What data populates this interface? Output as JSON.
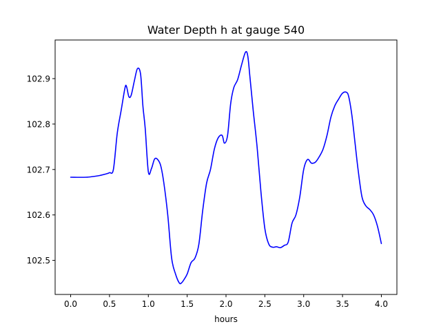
{
  "chart_data": {
    "type": "line",
    "title": "Water Depth h at gauge 540",
    "xlabel": "hours",
    "ylabel": "",
    "xlim": [
      -0.2,
      4.2
    ],
    "ylim": [
      102.425,
      102.985
    ],
    "xticks": [
      0.0,
      0.5,
      1.0,
      1.5,
      2.0,
      2.5,
      3.0,
      3.5,
      4.0
    ],
    "xtick_labels": [
      "0.0",
      "0.5",
      "1.0",
      "1.5",
      "2.0",
      "2.5",
      "3.0",
      "3.5",
      "4.0"
    ],
    "yticks": [
      102.5,
      102.6,
      102.7,
      102.8,
      102.9
    ],
    "ytick_labels": [
      "102.5",
      "102.6",
      "102.7",
      "102.8",
      "102.9"
    ],
    "grid": false,
    "series": [
      {
        "color": "#0000ff",
        "x": [
          0.0,
          0.2,
          0.35,
          0.45,
          0.5,
          0.55,
          0.6,
          0.65,
          0.7,
          0.72,
          0.75,
          0.78,
          0.82,
          0.86,
          0.9,
          0.93,
          0.96,
          1.0,
          1.04,
          1.08,
          1.12,
          1.16,
          1.2,
          1.25,
          1.3,
          1.35,
          1.4,
          1.43,
          1.46,
          1.5,
          1.55,
          1.6,
          1.65,
          1.7,
          1.75,
          1.8,
          1.85,
          1.9,
          1.95,
          1.98,
          2.02,
          2.06,
          2.1,
          2.15,
          2.2,
          2.25,
          2.28,
          2.31,
          2.35,
          2.4,
          2.45,
          2.5,
          2.55,
          2.6,
          2.65,
          2.7,
          2.75,
          2.8,
          2.85,
          2.9,
          2.95,
          3.0,
          3.05,
          3.1,
          3.15,
          3.2,
          3.25,
          3.3,
          3.35,
          3.4,
          3.45,
          3.5,
          3.55,
          3.58,
          3.62,
          3.66,
          3.7,
          3.75,
          3.8,
          3.85,
          3.9,
          3.95,
          4.0
        ],
        "values": [
          102.683,
          102.683,
          102.686,
          102.69,
          102.693,
          102.7,
          102.78,
          102.83,
          102.88,
          102.882,
          102.86,
          102.864,
          102.895,
          102.922,
          102.91,
          102.84,
          102.79,
          102.695,
          102.702,
          102.723,
          102.722,
          102.708,
          102.67,
          102.6,
          102.505,
          102.47,
          102.45,
          102.451,
          102.458,
          102.47,
          102.495,
          102.505,
          102.535,
          102.61,
          102.67,
          102.7,
          102.745,
          102.77,
          102.775,
          102.758,
          102.775,
          102.845,
          102.88,
          102.898,
          102.93,
          102.958,
          102.95,
          102.9,
          102.83,
          102.75,
          102.65,
          102.57,
          102.536,
          102.529,
          102.53,
          102.528,
          102.533,
          102.54,
          102.582,
          102.6,
          102.64,
          102.7,
          102.722,
          102.714,
          102.716,
          102.728,
          102.745,
          102.775,
          102.815,
          102.84,
          102.855,
          102.868,
          102.87,
          102.86,
          102.82,
          102.76,
          102.7,
          102.64,
          102.62,
          102.612,
          102.6,
          102.575,
          102.537
        ]
      }
    ]
  }
}
